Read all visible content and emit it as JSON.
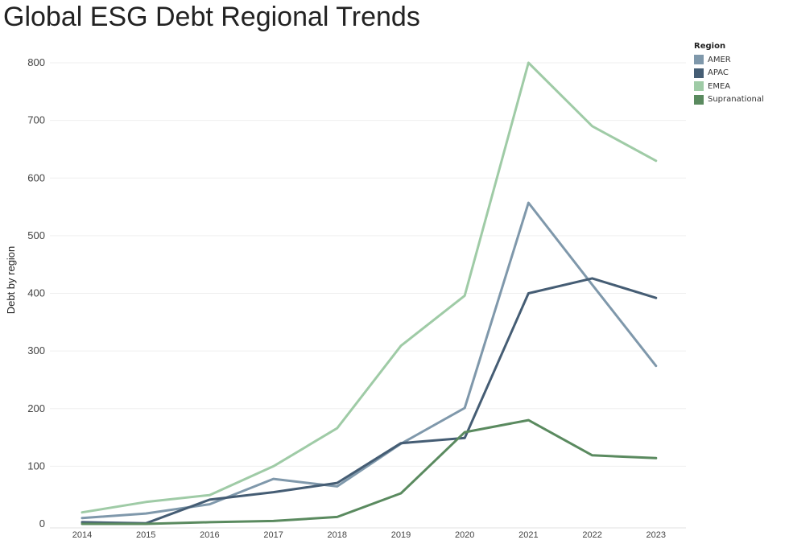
{
  "chart_data": {
    "type": "line",
    "title": "Global ESG Debt Regional Trends",
    "ylabel": "Debt by region",
    "xlabel": "",
    "x": [
      "2014",
      "2015",
      "2016",
      "2017",
      "2018",
      "2019",
      "2020",
      "2021",
      "2022",
      "2023"
    ],
    "ylim": [
      0,
      800
    ],
    "yticks": [
      "0",
      "100",
      "200",
      "300",
      "400",
      "500",
      "600",
      "700",
      "800"
    ],
    "grid": true,
    "legend": {
      "title": "Region",
      "placement": "top-right"
    },
    "series": [
      {
        "name": "AMER",
        "color": "#7f98ab",
        "values": [
          10,
          18,
          34,
          78,
          65,
          139,
          201,
          557,
          415,
          274
        ]
      },
      {
        "name": "APAC",
        "color": "#455d74",
        "values": [
          3,
          1,
          42,
          55,
          71,
          140,
          149,
          400,
          426,
          392
        ]
      },
      {
        "name": "EMEA",
        "color": "#9fcba6",
        "values": [
          20,
          38,
          50,
          100,
          166,
          309,
          396,
          800,
          690,
          630
        ]
      },
      {
        "name": "Supranational",
        "color": "#5a8a5f",
        "values": [
          0,
          0,
          3,
          5,
          12,
          53,
          159,
          180,
          119,
          114
        ]
      }
    ]
  }
}
